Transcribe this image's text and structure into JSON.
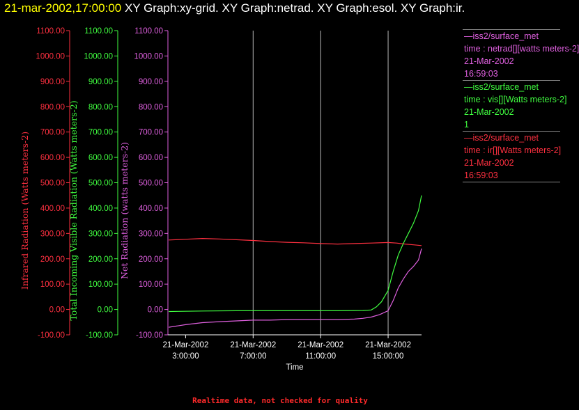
{
  "header": {
    "timestamp": "21-mar-2002,17:00:00",
    "titles": [
      "XY Graph:xy-grid.",
      "XY Graph:netrad.",
      "XY Graph:esol.",
      "XY Graph:ir."
    ]
  },
  "footer": "Realtime data, not checked for quality",
  "legend": [
    {
      "color": "#e060e0",
      "lines": [
        "—iss2/surface_met",
        "time : netrad[][watts meters-2]",
        "21-Mar-2002",
        "16:59:03"
      ]
    },
    {
      "color": "#40ff40",
      "lines": [
        "—iss2/surface_met",
        "time : vis[][Watts meters-2]",
        "21-Mar-2002",
        "1"
      ]
    },
    {
      "color": "#ff3040",
      "lines": [
        "—iss2/surface_met",
        "time : ir[][Watts meters-2]",
        "21-Mar-2002",
        "16:59:03"
      ]
    }
  ],
  "chart_data": {
    "type": "line",
    "xlabel": "Time",
    "x_ticks": [
      {
        "hour": 3,
        "date": "21-Mar-2002",
        "time": "3:00:00"
      },
      {
        "hour": 7,
        "date": "21-Mar-2002",
        "time": "7:00:00"
      },
      {
        "hour": 11,
        "date": "21-Mar-2002",
        "time": "11:00:00"
      },
      {
        "hour": 15,
        "date": "21-Mar-2002",
        "time": "15:00:00"
      }
    ],
    "xlim_hours": [
      1.95,
      16.98
    ],
    "grid_vertical_hours": [
      7,
      11,
      15
    ],
    "y_ticks": [
      "1100.00",
      "1000.00",
      "900.00",
      "800.00",
      "700.00",
      "600.00",
      "500.00",
      "400.00",
      "300.00",
      "200.00",
      "100.00",
      "0.00",
      "-100.00"
    ],
    "axes": [
      {
        "label": "Infrared Radiation (Watts meters-2)",
        "color": "#ff3040",
        "ylim": [
          -100,
          1100
        ]
      },
      {
        "label": "Total Incoming Visible Radiation (Watts meters-2)",
        "color": "#40ff40",
        "ylim": [
          -100,
          1100
        ]
      },
      {
        "label": "Net Radiation (watts meters-2)",
        "color": "#e060e0",
        "ylim": [
          -100,
          1100
        ]
      }
    ],
    "series": [
      {
        "color": "#ff3040",
        "x": [
          2.0,
          3.0,
          4.0,
          5.0,
          6.0,
          7.0,
          8.0,
          9.0,
          10.0,
          11.0,
          12.0,
          13.0,
          14.0,
          15.0,
          15.5,
          16.0,
          16.5,
          16.98
        ],
        "y": [
          274,
          277,
          280,
          278,
          275,
          272,
          268,
          265,
          263,
          260,
          258,
          260,
          262,
          264,
          262,
          258,
          255,
          252
        ]
      },
      {
        "color": "#40ff40",
        "x": [
          2.0,
          4.0,
          6.0,
          8.0,
          10.0,
          12.0,
          13.5,
          14.0,
          14.3,
          14.6,
          15.0,
          15.3,
          15.6,
          15.9,
          16.2,
          16.5,
          16.8,
          16.98
        ],
        "y": [
          -8,
          -6,
          -5,
          -5,
          -5,
          -5,
          -4,
          -2,
          10,
          30,
          75,
          150,
          215,
          260,
          300,
          340,
          390,
          450
        ]
      },
      {
        "color": "#e060e0",
        "x": [
          2.0,
          3.0,
          4.0,
          5.0,
          6.0,
          7.0,
          8.0,
          9.0,
          10.0,
          11.0,
          12.0,
          13.0,
          13.5,
          14.0,
          14.5,
          15.0,
          15.3,
          15.6,
          15.9,
          16.2,
          16.5,
          16.8,
          16.98
        ],
        "y": [
          -70,
          -60,
          -52,
          -48,
          -45,
          -42,
          -42,
          -40,
          -40,
          -40,
          -40,
          -38,
          -35,
          -30,
          -20,
          -5,
          35,
          85,
          120,
          150,
          170,
          195,
          240
        ]
      }
    ]
  }
}
